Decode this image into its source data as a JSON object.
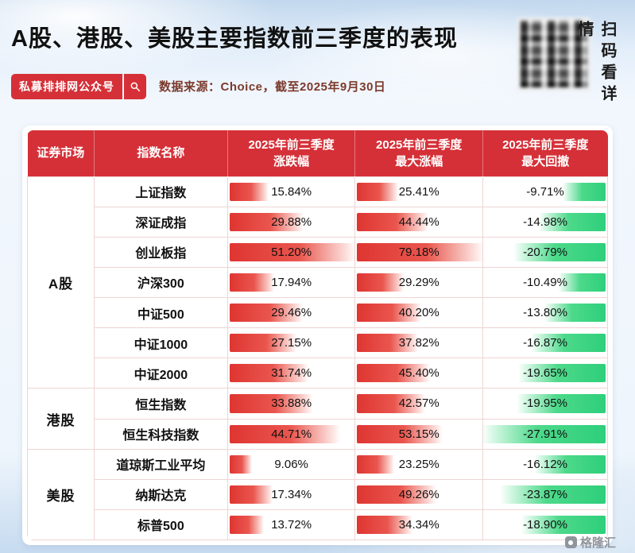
{
  "page": {
    "title": "A股、港股、美股主要指数前三季度的表现",
    "badge_label": "私募排排网公众号",
    "source_note": "数据来源：Choice，截至2025年9月30日",
    "qr_caption": "扫码看详情",
    "footer_logo": "格隆汇"
  },
  "colors": {
    "header_red": "#d53038",
    "bar_red": "#df3531",
    "bar_green": "#2ecf7b",
    "source_text": "#7b3a2c"
  },
  "chart_data": {
    "type": "table",
    "title": "A股、港股、美股主要指数前三季度的表现",
    "source": "数据来源：Choice，截至2025年9月30日",
    "value_format": "percent",
    "bar_style": "red bars for gains (left-anchored), green bars for drawdowns (right-anchored), width proportional to column max",
    "columns": [
      {
        "label": "证券市场"
      },
      {
        "label": "指数名称"
      },
      {
        "label": "2025年前三季度涨跌幅",
        "line1": "2025年前三季度",
        "line2": "涨跌幅"
      },
      {
        "label": "2025年前三季度最大涨幅",
        "line1": "2025年前三季度",
        "line2": "最大涨幅"
      },
      {
        "label": "2025年前三季度最大回撤",
        "line1": "2025年前三季度",
        "line2": "最大回撤"
      }
    ],
    "groups": [
      {
        "market": "A股",
        "rows": [
          {
            "name": "上证指数",
            "values": [
              15.84,
              25.41,
              -9.71
            ]
          },
          {
            "name": "深证成指",
            "values": [
              29.88,
              44.44,
              -14.98
            ]
          },
          {
            "name": "创业板指",
            "values": [
              51.2,
              79.18,
              -20.79
            ]
          },
          {
            "name": "沪深300",
            "values": [
              17.94,
              29.29,
              -10.49
            ]
          },
          {
            "name": "中证500",
            "values": [
              29.46,
              40.2,
              -13.8
            ]
          },
          {
            "name": "中证1000",
            "values": [
              27.15,
              37.82,
              -16.87
            ]
          },
          {
            "name": "中证2000",
            "values": [
              31.74,
              45.4,
              -19.65
            ]
          }
        ]
      },
      {
        "market": "港股",
        "rows": [
          {
            "name": "恒生指数",
            "values": [
              33.88,
              42.57,
              -19.95
            ]
          },
          {
            "name": "恒生科技指数",
            "values": [
              44.71,
              53.15,
              -27.91
            ]
          }
        ]
      },
      {
        "market": "美股",
        "rows": [
          {
            "name": "道琼斯工业平均",
            "values": [
              9.06,
              23.25,
              -16.12
            ]
          },
          {
            "name": "纳斯达克",
            "values": [
              17.34,
              49.26,
              -23.87
            ]
          },
          {
            "name": "标普500",
            "values": [
              13.72,
              34.34,
              -18.9
            ]
          }
        ]
      }
    ]
  }
}
